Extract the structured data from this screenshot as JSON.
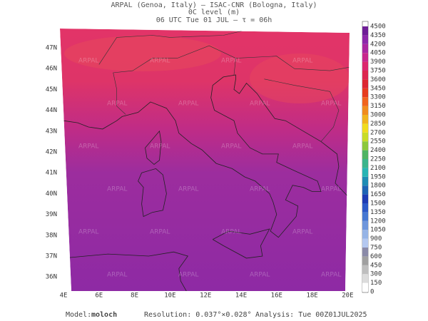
{
  "header": {
    "line1": "ARPAL (Genoa, Italy)  –  ISAC-CNR (Bologna, Italy)",
    "line2": "0C level (m)",
    "line3": "06 UTC Tue 01 JUL  –  τ = 06h"
  },
  "map": {
    "lat_labels": [
      "47N",
      "46N",
      "45N",
      "44N",
      "43N",
      "42N",
      "41N",
      "40N",
      "39N",
      "38N",
      "37N",
      "36N"
    ],
    "lon_labels": [
      "4E",
      "6E",
      "8E",
      "10E",
      "12E",
      "14E",
      "16E",
      "18E",
      "20E"
    ],
    "watermark": "ARPAL"
  },
  "colorbar": {
    "ticks": [
      0,
      150,
      300,
      450,
      600,
      750,
      900,
      1050,
      1200,
      1350,
      1500,
      1650,
      1800,
      1950,
      2100,
      2250,
      2400,
      2550,
      2700,
      2850,
      3000,
      3150,
      3300,
      3450,
      3600,
      3750,
      3900,
      4050,
      4200,
      4350,
      4500
    ],
    "colors": [
      "#ffffff",
      "#dcdcdc",
      "#bebebe",
      "#a0a0a0",
      "#8a8aa8",
      "#b4c8f0",
      "#96b4e6",
      "#6e96dc",
      "#4678d2",
      "#2d5ac8",
      "#1e3cb4",
      "#1e64b4",
      "#1e8cb4",
      "#28b4b4",
      "#3cb48c",
      "#50b464",
      "#8cc83c",
      "#c8dc28",
      "#f0dc1e",
      "#f0b41e",
      "#f08c1e",
      "#f0641e",
      "#e63c1e",
      "#dc2832",
      "#dc2850",
      "#dc286e",
      "#c8288c",
      "#aa28a0",
      "#8c28aa",
      "#6e1e96"
    ]
  },
  "footer": {
    "model_label": "Model:",
    "model": "moloch",
    "resolution": "Resolution: 0.037°×0.028°",
    "analysis": "Analysis: Tue 00Z01JUL2025"
  }
}
